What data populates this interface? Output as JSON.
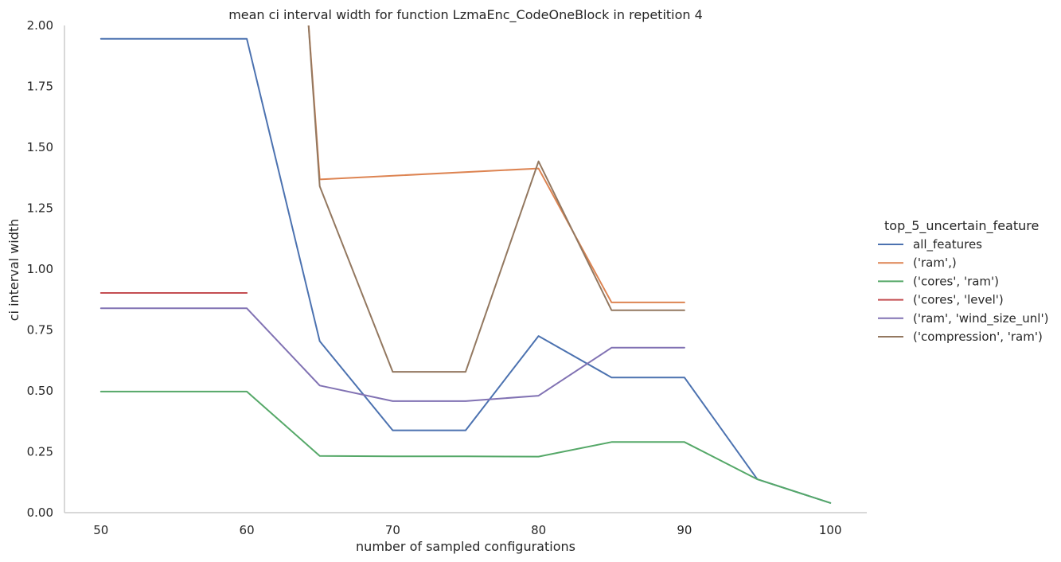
{
  "chart_data": {
    "type": "line",
    "title": "mean ci interval width for function LzmaEnc_CodeOneBlock in repetition 4",
    "xlabel": "number of sampled configurations",
    "ylabel": "ci interval width",
    "xlim": [
      47.5,
      102.5
    ],
    "ylim": [
      0,
      2.0
    ],
    "xticks": [
      50,
      60,
      70,
      80,
      90,
      100
    ],
    "yticks": [
      0.0,
      0.25,
      0.5,
      0.75,
      1.0,
      1.25,
      1.5,
      1.75,
      2.0
    ],
    "ytick_labels": [
      "0.00",
      "0.25",
      "0.50",
      "0.75",
      "1.00",
      "1.25",
      "1.50",
      "1.75",
      "2.00"
    ],
    "grid": false,
    "legend_title": "top_5_uncertain_feature",
    "legend_position": "right",
    "series": [
      {
        "name": "all_features",
        "color": "#4c72b0",
        "x": [
          50,
          60,
          65,
          70,
          75,
          80,
          85,
          90,
          95,
          100
        ],
        "y": [
          1.945,
          1.945,
          0.704,
          0.338,
          0.338,
          0.725,
          0.555,
          0.555,
          0.137,
          0.04
        ]
      },
      {
        "name": "('ram',)",
        "color": "#dd8452",
        "x": [
          64,
          65,
          80,
          85,
          90
        ],
        "y": [
          2.2,
          1.368,
          1.413,
          0.863,
          0.863
        ]
      },
      {
        "name": "('cores', 'ram')",
        "color": "#55a868",
        "x": [
          50,
          60,
          65,
          70,
          75,
          80,
          85,
          90,
          95,
          100
        ],
        "y": [
          0.497,
          0.497,
          0.233,
          0.231,
          0.231,
          0.23,
          0.29,
          0.29,
          0.137,
          0.04
        ]
      },
      {
        "name": "('cores', 'level')",
        "color": "#c44e52",
        "x": [
          50,
          60
        ],
        "y": [
          0.902,
          0.902
        ]
      },
      {
        "name": "('ram', 'wind_size_unl')",
        "color": "#8172b3",
        "x": [
          50,
          60,
          65,
          70,
          75,
          80,
          85,
          90
        ],
        "y": [
          0.839,
          0.839,
          0.522,
          0.458,
          0.458,
          0.48,
          0.677,
          0.677
        ]
      },
      {
        "name": "('compression', 'ram')",
        "color": "#937860",
        "x": [
          64,
          65,
          70,
          75,
          80,
          85,
          90
        ],
        "y": [
          2.2,
          1.34,
          0.578,
          0.578,
          1.442,
          0.831,
          0.831
        ]
      }
    ]
  }
}
